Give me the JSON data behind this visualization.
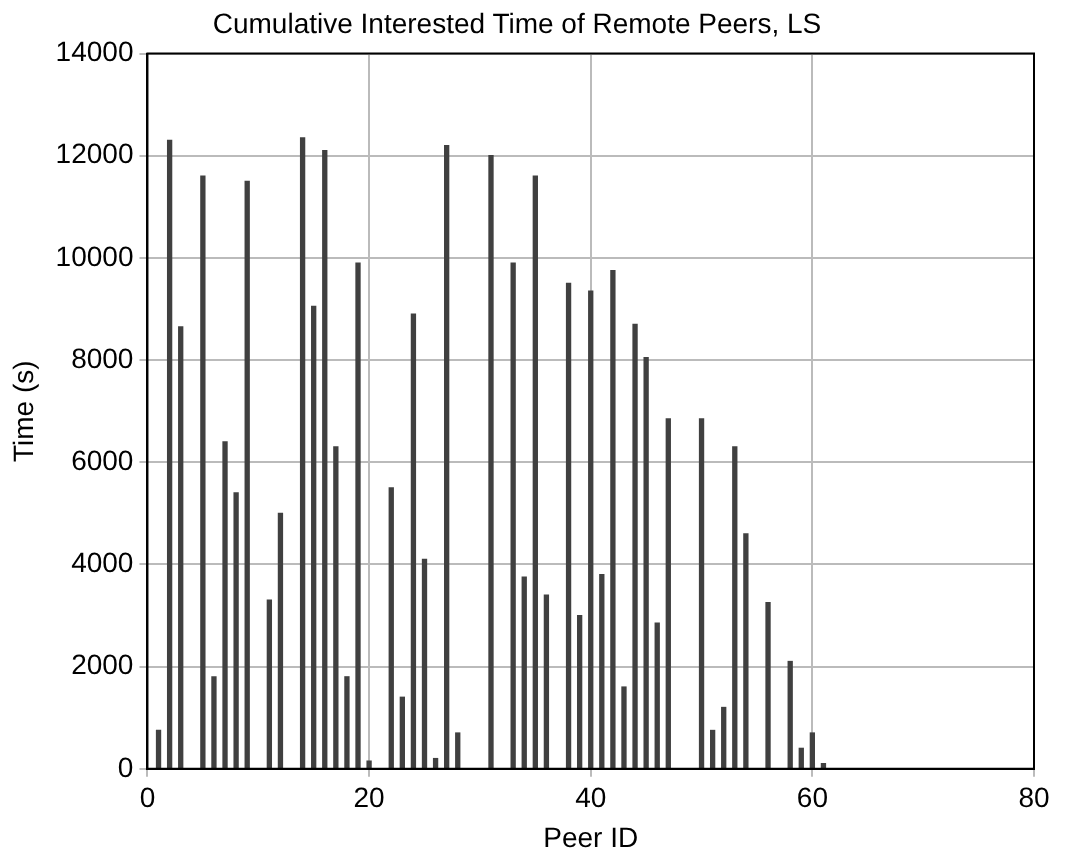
{
  "chart_data": {
    "type": "bar",
    "title": "Cumulative Interested Time of Remote Peers, LS",
    "xlabel": "Peer ID",
    "ylabel": "Time (s)",
    "x": [
      1,
      2,
      3,
      5,
      6,
      7,
      8,
      9,
      11,
      12,
      14,
      15,
      16,
      17,
      18,
      19,
      20,
      22,
      23,
      24,
      25,
      26,
      27,
      28,
      31,
      33,
      34,
      35,
      36,
      38,
      39,
      40,
      41,
      42,
      43,
      44,
      45,
      46,
      47,
      50,
      51,
      52,
      53,
      54,
      56,
      58,
      59,
      60,
      61
    ],
    "values": [
      750,
      12300,
      8650,
      11600,
      1800,
      6400,
      5400,
      11500,
      3300,
      5000,
      12350,
      9050,
      12100,
      6300,
      1800,
      9900,
      150,
      5500,
      1400,
      8900,
      4100,
      200,
      12200,
      700,
      12000,
      9900,
      3750,
      11600,
      3400,
      9500,
      3000,
      9350,
      3800,
      9750,
      1600,
      8700,
      8050,
      2850,
      6850,
      6850,
      750,
      1200,
      6300,
      4600,
      3250,
      2100,
      400,
      700,
      100
    ],
    "color": "#404040",
    "xlim": [
      0,
      80
    ],
    "xticks": [
      0,
      20,
      40,
      60,
      80
    ],
    "ylim": [
      0,
      14000
    ],
    "yticks": [
      0,
      2000,
      4000,
      6000,
      8000,
      10000,
      12000,
      14000
    ],
    "grid": true
  }
}
